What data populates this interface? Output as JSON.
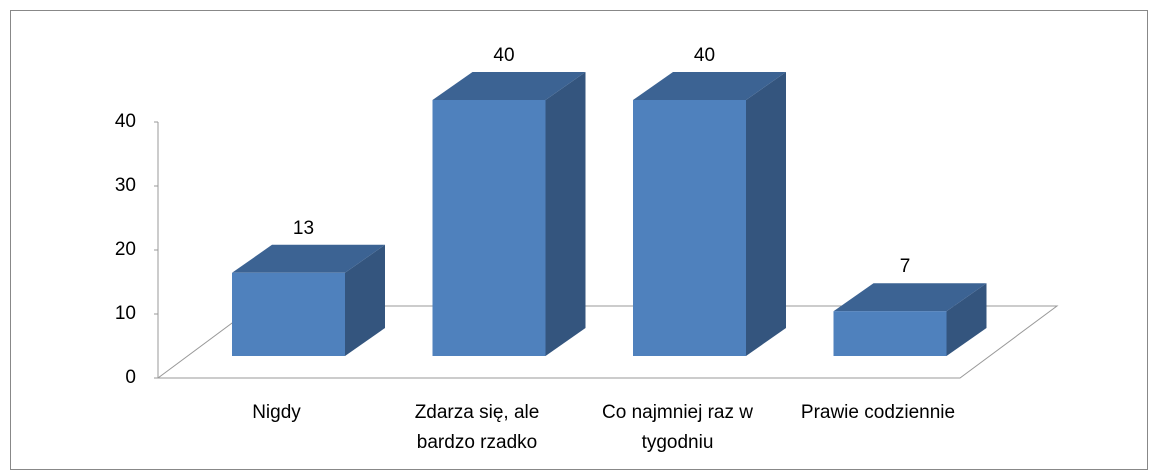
{
  "chart_data": {
    "type": "bar3d",
    "categories": [
      "Nigdy",
      "Zdarza się, ale bardzo rzadko",
      "Co najmniej raz w tygodniu",
      "Prawie codziennie"
    ],
    "values": [
      13,
      40,
      40,
      7
    ],
    "color": "#4f81bd",
    "ylim": [
      0,
      40
    ],
    "yticks": [
      0,
      10,
      20,
      30,
      40
    ]
  }
}
